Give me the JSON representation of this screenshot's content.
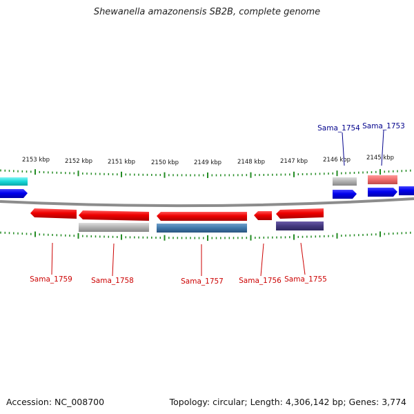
{
  "title": "Shewanella amazonensis SB2B, complete genome",
  "footer": {
    "accession": "Accession: NC_008700",
    "topology": "Topology: circular; Length: 4,306,142 bp; Genes: 3,774"
  },
  "colors": {
    "backbone": "#8c8c8c",
    "tick": "#228b22",
    "label_red": "#cc0000",
    "label_blue": "#00008b",
    "tick_label": "#111111"
  },
  "scale": {
    "unit": "kbp",
    "labels": [
      "2153 kbp",
      "2152 kbp",
      "2151 kbp",
      "2150 kbp",
      "2149 kbp",
      "2148 kbp",
      "2147 kbp",
      "2146 kbp",
      "2145 kbp"
    ]
  },
  "genes": [
    {
      "id": "Sama_1759",
      "label_color": "red"
    },
    {
      "id": "Sama_1758",
      "label_color": "red"
    },
    {
      "id": "Sama_1757",
      "label_color": "red"
    },
    {
      "id": "Sama_1756",
      "label_color": "red"
    },
    {
      "id": "Sama_1755",
      "label_color": "red"
    },
    {
      "id": "Sama_1754",
      "label_color": "blue"
    },
    {
      "id": "Sama_1753",
      "label_color": "blue"
    }
  ]
}
